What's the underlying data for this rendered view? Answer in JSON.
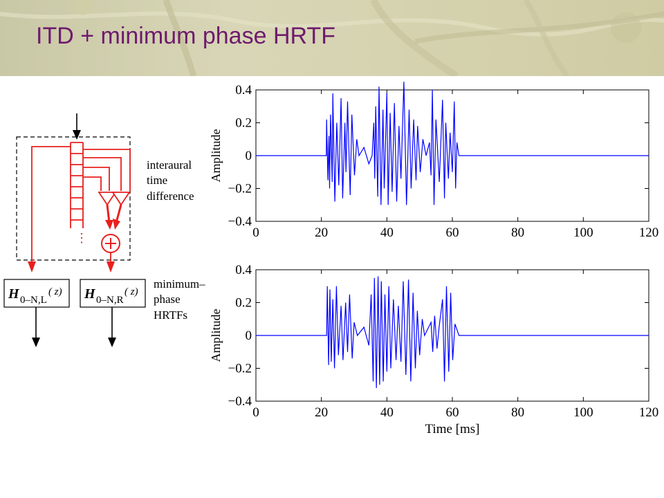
{
  "slide": {
    "title": "ITD + minimum phase HRTF"
  },
  "diagram": {
    "itd_label": [
      "interaural",
      "time",
      "difference"
    ],
    "hrtf_label": [
      "minimum–",
      "phase",
      "HRTFs"
    ],
    "filter_left": {
      "symbol": "H",
      "subscript": "0–N,L",
      "argument": "( z)"
    },
    "filter_right": {
      "symbol": "H",
      "subscript": "0–N,R",
      "argument": "( z)"
    },
    "continuation": "⋮",
    "signal_color": "#e8201e",
    "line_color": "#000000"
  },
  "chart_data": [
    {
      "type": "line",
      "title": "",
      "xlabel": "",
      "ylabel": "Amplitude",
      "xlim": [
        0,
        120
      ],
      "ylim": [
        -0.4,
        0.4
      ],
      "xticks": [
        0,
        20,
        40,
        60,
        80,
        100,
        120
      ],
      "yticks": [
        0.4,
        0.2,
        0,
        -0.2,
        -0.4
      ],
      "ytick_labels": [
        "0.4",
        "0.2",
        "0",
        "−0.2",
        "−0.4"
      ],
      "grid": false,
      "color": "#0000ff",
      "series": [
        {
          "x": [
            0,
            21.5,
            21.6,
            22.0,
            22.3,
            22.5,
            22.8,
            23.3,
            23.5,
            24.1,
            24.7,
            25.3,
            26.0,
            26.5,
            27.2,
            27.5,
            28.0,
            28.8,
            29.3,
            30.1,
            30.8,
            31.5,
            33.0,
            34.5,
            35.5,
            36.0,
            36.3,
            36.6,
            37.2,
            37.6,
            38.2,
            38.8,
            39.2,
            40.0,
            40.4,
            41.0,
            41.6,
            42.3,
            43.0,
            43.7,
            44.3,
            45.2,
            46.0,
            46.8,
            47.4,
            48.2,
            48.9,
            49.4,
            50.2,
            51.0,
            52.0,
            53.0,
            53.5,
            53.9,
            54.4,
            55.0,
            56.0,
            57.0,
            57.6,
            58.0,
            58.8,
            59.3,
            60.0,
            60.6,
            61.0,
            61.4,
            62.0,
            120
          ],
          "y": [
            0,
            0,
            0.22,
            -0.15,
            0.12,
            -0.2,
            0.25,
            -0.16,
            0.38,
            -0.28,
            0.2,
            -0.18,
            0.35,
            -0.26,
            0.2,
            -0.1,
            0.33,
            -0.24,
            0.25,
            -0.12,
            0.1,
            0,
            0.05,
            -0.05,
            0,
            0.2,
            -0.14,
            0.3,
            -0.25,
            0.42,
            -0.3,
            0.28,
            -0.2,
            0.38,
            -0.3,
            0.26,
            -0.22,
            0.32,
            -0.28,
            0.18,
            -0.14,
            0.45,
            -0.3,
            0.28,
            -0.2,
            0.22,
            -0.15,
            0.18,
            -0.1,
            0.1,
            0,
            0.08,
            -0.12,
            0.4,
            -0.3,
            0.22,
            -0.16,
            0.34,
            -0.26,
            0.2,
            -0.14,
            0.14,
            -0.1,
            0.33,
            -0.2,
            0.08,
            0,
            0
          ]
        }
      ]
    },
    {
      "type": "line",
      "title": "",
      "xlabel": "Time [ms]",
      "ylabel": "Amplitude",
      "xlim": [
        0,
        120
      ],
      "ylim": [
        -0.4,
        0.4
      ],
      "xticks": [
        0,
        20,
        40,
        60,
        80,
        100,
        120
      ],
      "yticks": [
        0.4,
        0.2,
        0,
        -0.2,
        -0.4
      ],
      "ytick_labels": [
        "0.4",
        "0.2",
        "0",
        "−0.2",
        "−0.4"
      ],
      "grid": false,
      "color": "#0000ff",
      "series": [
        {
          "x": [
            0,
            21.6,
            21.8,
            22.2,
            22.6,
            23.0,
            23.5,
            24.0,
            24.6,
            25.2,
            26.0,
            26.6,
            27.4,
            28.0,
            28.6,
            29.4,
            30.0,
            31.0,
            33.0,
            34.5,
            35.2,
            35.8,
            36.2,
            36.8,
            37.3,
            37.8,
            38.3,
            38.9,
            39.4,
            40.0,
            40.6,
            41.2,
            42.0,
            42.8,
            43.5,
            44.3,
            45.0,
            45.8,
            46.6,
            47.3,
            48.0,
            48.7,
            49.3,
            50.0,
            50.8,
            51.5,
            53.5,
            54.0,
            54.6,
            55.3,
            56.0,
            57.0,
            57.6,
            58.2,
            58.9,
            59.5,
            60.1,
            60.8,
            61.5,
            62.0,
            120
          ],
          "y": [
            0,
            0,
            0.3,
            -0.18,
            0.28,
            -0.16,
            0.22,
            -0.2,
            0.3,
            -0.12,
            0.18,
            -0.15,
            0.2,
            -0.1,
            0.25,
            -0.14,
            0.08,
            0,
            0.05,
            -0.06,
            0.25,
            -0.28,
            0.35,
            -0.32,
            0.36,
            -0.3,
            0.33,
            -0.28,
            0.25,
            -0.22,
            0.3,
            -0.2,
            0.22,
            -0.15,
            0.18,
            -0.16,
            0.33,
            -0.24,
            0.34,
            -0.28,
            0.26,
            -0.2,
            0.15,
            -0.12,
            0.1,
            0,
            0.08,
            -0.1,
            0.12,
            -0.08,
            0.06,
            0.22,
            -0.28,
            0.3,
            -0.22,
            0.26,
            -0.15,
            0.07,
            0.03,
            0,
            0
          ]
        }
      ]
    }
  ]
}
